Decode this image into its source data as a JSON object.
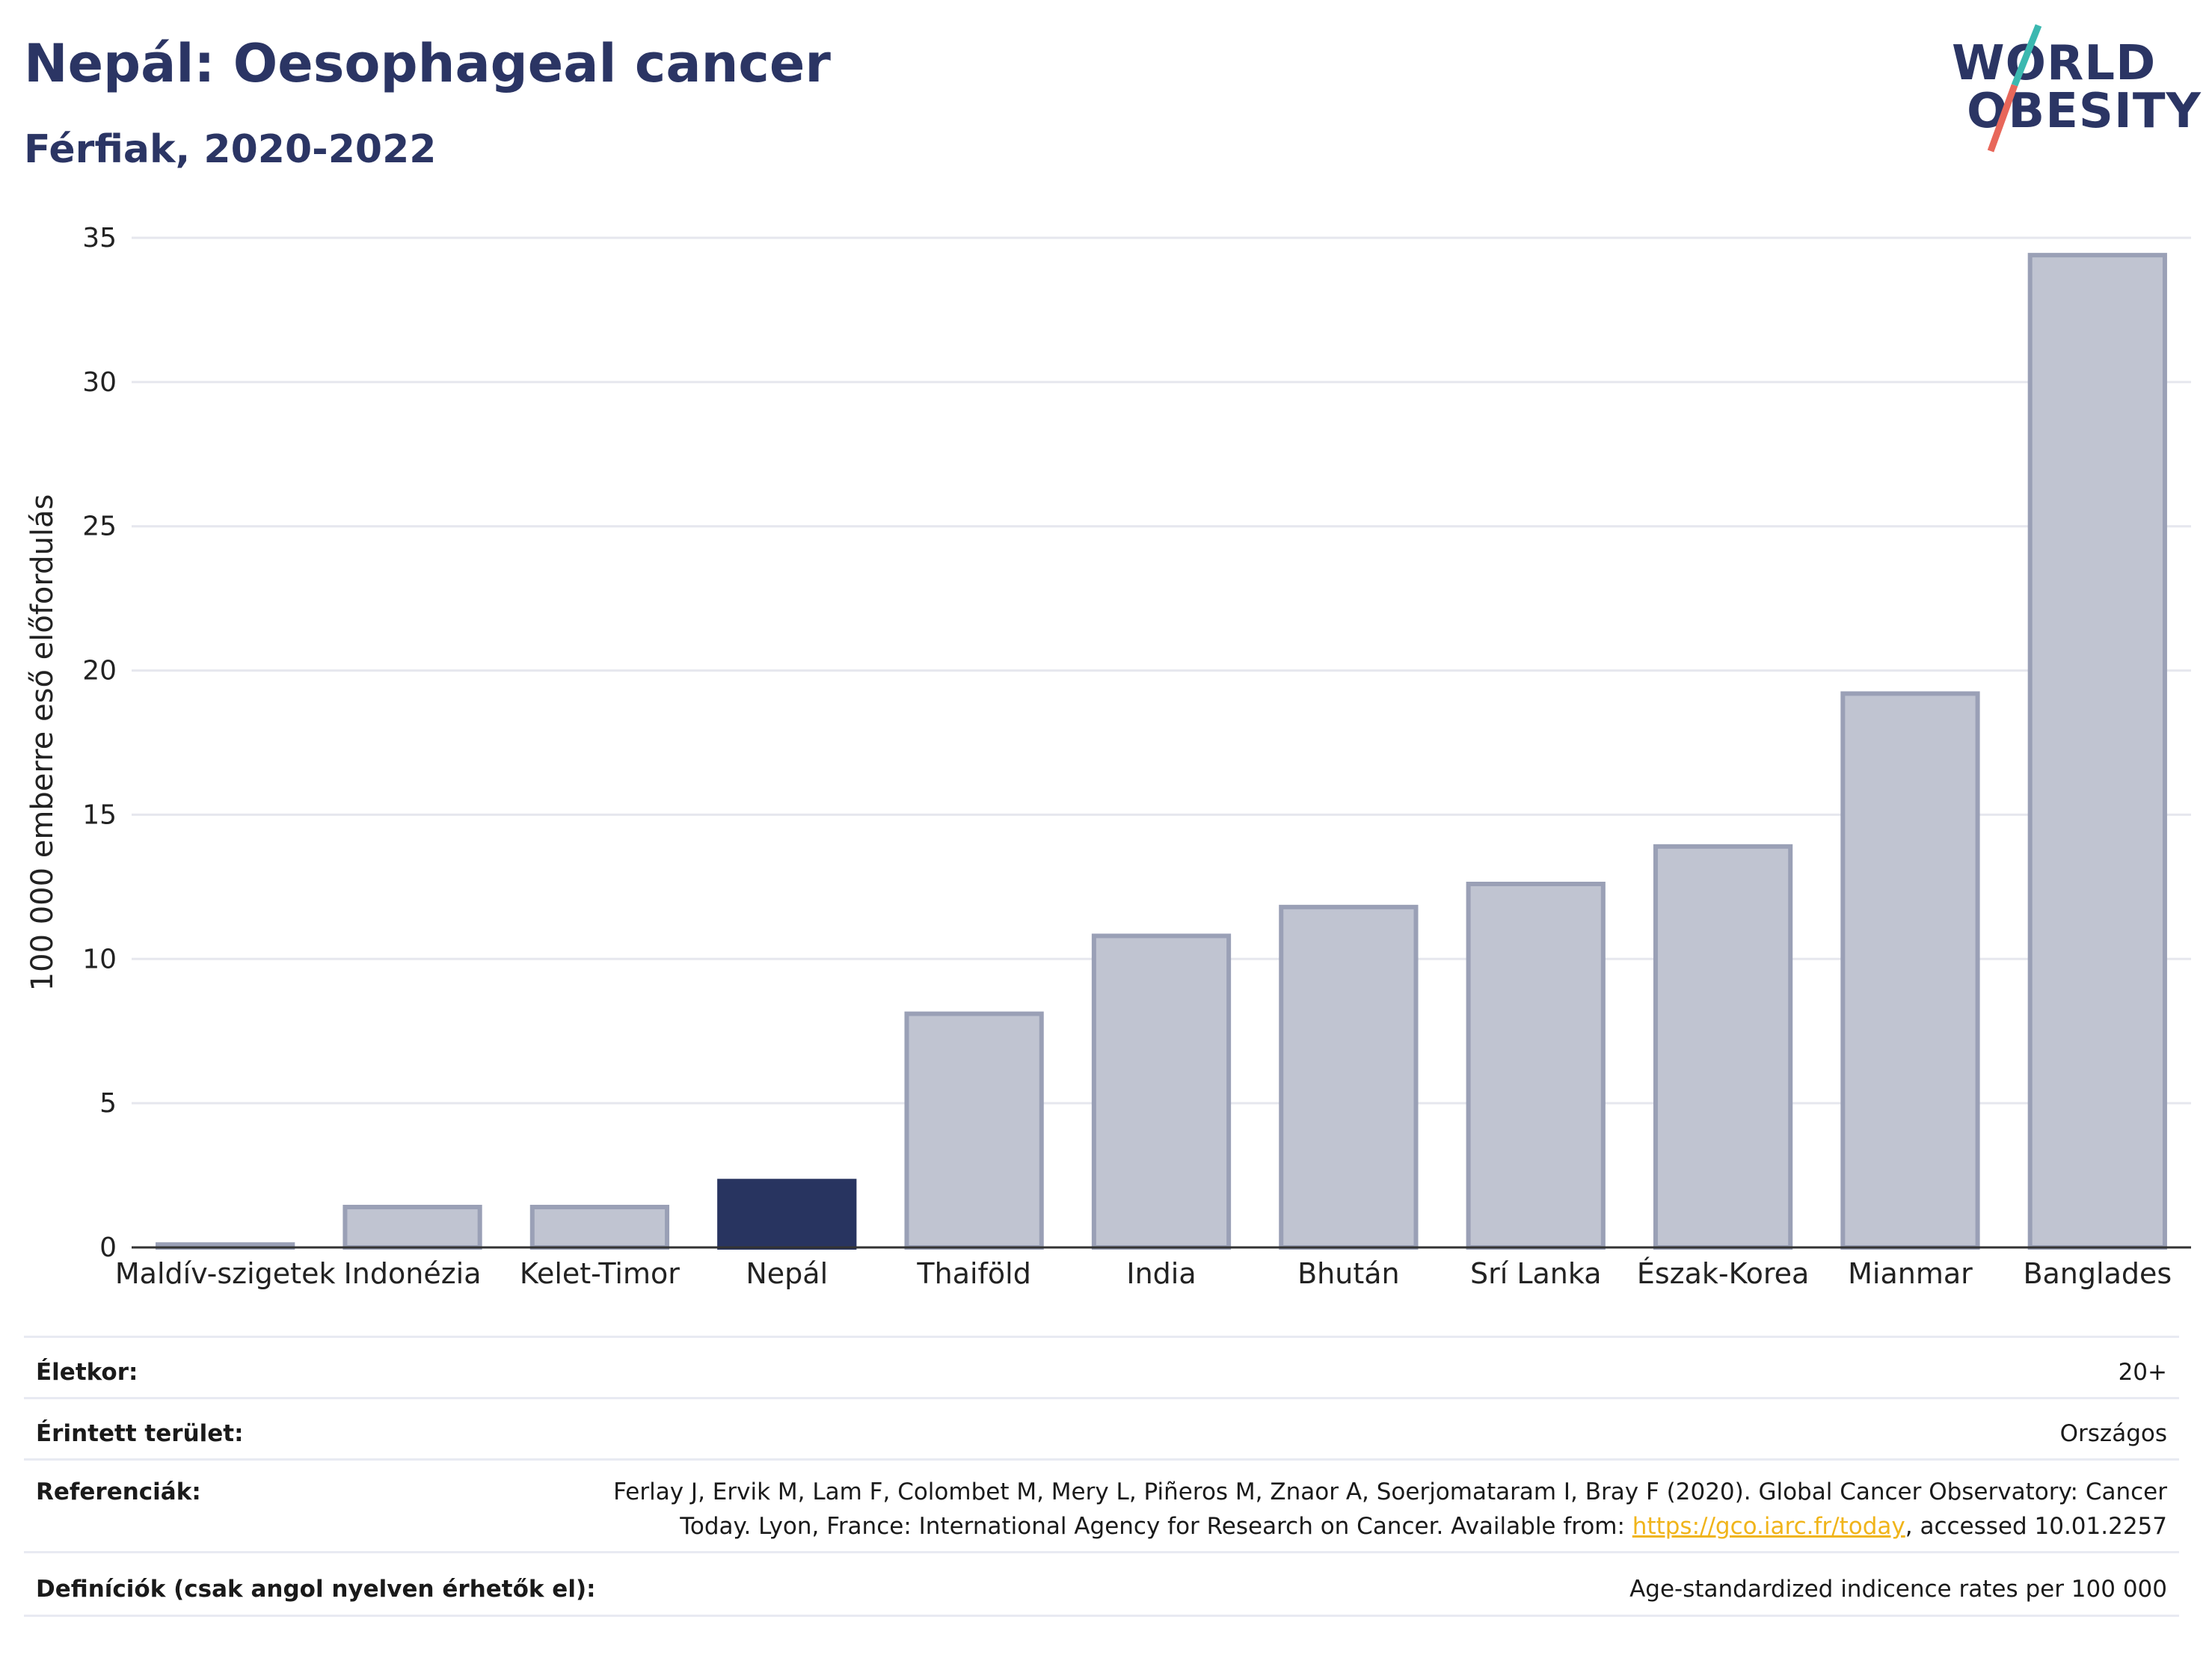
{
  "header": {
    "title": "Nepál: Oesophageal cancer",
    "subtitle": "Férfiak, 2020-2022"
  },
  "logo": {
    "line1": "WORLD",
    "line2": "OBESITY",
    "slash_colors": [
      "#3bb8b0",
      "#e8675a"
    ]
  },
  "colors": {
    "highlight_bar": "#283460",
    "other_bar_fill": "#c0c4d1",
    "other_bar_stroke": "#9aa0b6",
    "grid": "#e6e7ee",
    "axis": "#333333",
    "title": "#2b3564",
    "link": "#f0b41a"
  },
  "chart_data": {
    "type": "bar",
    "title": "Nepál: Oesophageal cancer",
    "subtitle": "Férfiak, 2020-2022",
    "xlabel": "",
    "ylabel": "100 000 emberre eső előfordulás",
    "ylim": [
      0,
      35
    ],
    "yticks": [
      0,
      5,
      10,
      15,
      20,
      25,
      30,
      35
    ],
    "grid": true,
    "highlight": "Nepál",
    "categories": [
      "Maldív-szigetek",
      "Indonézia",
      "Kelet-Timor",
      "Nepál",
      "Thaiföld",
      "India",
      "Bhután",
      "Srí Lanka",
      "Észak-Korea",
      "Mianmar",
      "Banglades"
    ],
    "values": [
      0.1,
      1.4,
      1.4,
      2.3,
      8.1,
      10.8,
      11.8,
      12.6,
      13.9,
      19.2,
      34.4
    ]
  },
  "meta": {
    "rows": [
      {
        "label": "Életkor:",
        "value": "20+"
      },
      {
        "label": "Érintett terület:",
        "value": "Országos"
      },
      {
        "label": "Referenciák:",
        "value_line1": "Ferlay J, Ervik M, Lam F, Colombet M, Mery L, Piñeros M, Znaor A, Soerjomataram I, Bray F (2020). Global Cancer Observatory: Cancer",
        "value_line2_prefix": "Today. Lyon, France: International Agency for Research on Cancer. Available from: ",
        "value_link": "https://gco.iarc.fr/today",
        "value_line2_suffix": ", accessed 10.01.2257"
      },
      {
        "label": "Definíciók (csak angol nyelven érhetők el):",
        "value": "Age-standardized indicence rates per 100 000"
      }
    ]
  }
}
